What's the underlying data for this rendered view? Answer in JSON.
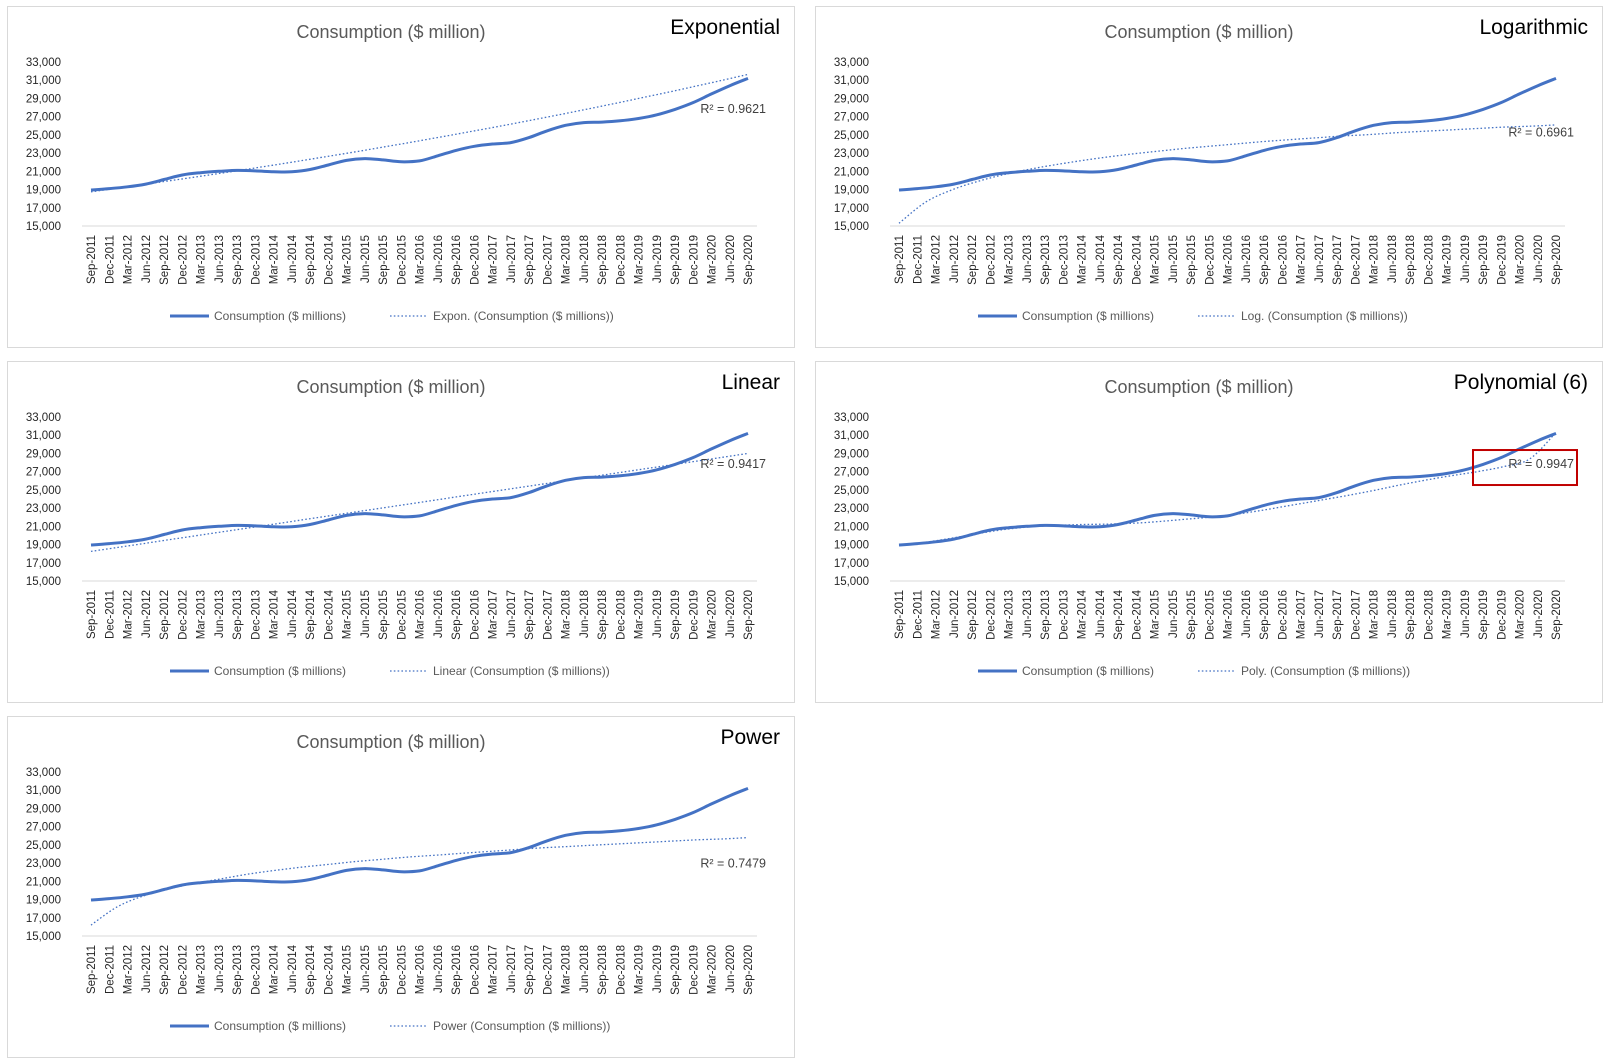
{
  "colors": {
    "series": "#4472C4",
    "highlight": "#C00000",
    "axis": "#d9d9d9",
    "text": "#595959"
  },
  "chart_data": [
    {
      "type": "line",
      "id": "exp",
      "title": "Consumption ($ million)",
      "label": "Exponential",
      "trend_type": "exponential",
      "r2_label": "R² = 0.9621",
      "r2_position": "right-middle",
      "legend": {
        "series": "Consumption ($ millions)",
        "trend": "Expon. (Consumption ($ millions))"
      },
      "trend_values": [
        18750,
        19150,
        19560,
        19970,
        20390,
        20820,
        21260,
        21710,
        22170,
        22640,
        23110,
        23600,
        24100,
        24610,
        25130,
        25660,
        26200,
        26760,
        27320,
        27900,
        28490,
        29100,
        29710,
        30340,
        30980,
        31640
      ],
      "highlight": false
    },
    {
      "type": "line",
      "id": "log",
      "title": "Consumption ($ million)",
      "label": "Logarithmic",
      "trend_type": "logarithmic",
      "r2_label": "R² = 0.6961",
      "r2_position": "right-middle",
      "legend": {
        "series": "Consumption ($ millions)",
        "trend": "Log. (Consumption ($ millions))"
      },
      "trend_values": [
        15300,
        17600,
        18950,
        19900,
        20650,
        21250,
        21750,
        22200,
        22600,
        22950,
        23250,
        23550,
        23800,
        24050,
        24300,
        24500,
        24700,
        24900,
        25050,
        25250,
        25400,
        25550,
        25700,
        25850,
        25950,
        26100
      ],
      "highlight": false
    },
    {
      "type": "line",
      "id": "lin",
      "title": "Consumption ($ million)",
      "label": "Linear",
      "trend_type": "linear",
      "r2_label": "R² = 0.9417",
      "r2_position": "right-middle",
      "legend": {
        "series": "Consumption ($ millions)",
        "trend": "Linear (Consumption ($ millions))"
      },
      "trend_values": [
        18250,
        18680,
        19110,
        19540,
        19970,
        20400,
        20830,
        21260,
        21690,
        22120,
        22550,
        22980,
        23410,
        23840,
        24270,
        24700,
        25130,
        25560,
        25990,
        26420,
        26850,
        27280,
        27710,
        28140,
        28570,
        29000
      ],
      "highlight": false
    },
    {
      "type": "line",
      "id": "poly",
      "title": "Consumption ($ million)",
      "label": "Polynomial (6)",
      "trend_type": "polynomial",
      "r2_label": "R² = 0.9947",
      "r2_position": "right-middle",
      "legend": {
        "series": "Consumption ($ millions)",
        "trend": "Poly. (Consumption ($ millions))"
      },
      "trend_values": [
        18900,
        19250,
        19700,
        20200,
        20650,
        20950,
        21100,
        21200,
        21250,
        21350,
        21550,
        21800,
        22050,
        22400,
        22850,
        23350,
        23850,
        24350,
        24900,
        25500,
        26050,
        26550,
        27000,
        27550,
        28400,
        31300
      ],
      "highlight": true
    },
    {
      "type": "line",
      "id": "pow",
      "title": "Consumption ($ million)",
      "label": "Power",
      "trend_type": "power",
      "r2_label": "R² = 0.7479",
      "r2_position": "right-middle",
      "legend": {
        "series": "Consumption ($ millions)",
        "trend": "Power (Consumption ($ millions))"
      },
      "trend_values": [
        16200,
        18200,
        19400,
        20200,
        20800,
        21300,
        21800,
        22200,
        22550,
        22850,
        23150,
        23400,
        23650,
        23850,
        24050,
        24250,
        24450,
        24650,
        24800,
        24950,
        25100,
        25250,
        25400,
        25550,
        25650,
        25800
      ],
      "highlight": false
    }
  ],
  "shared": {
    "categories": [
      "Sep-2011",
      "Dec-2011",
      "Mar-2012",
      "Jun-2012",
      "Sep-2012",
      "Dec-2012",
      "Mar-2013",
      "Jun-2013",
      "Sep-2013",
      "Dec-2013",
      "Mar-2014",
      "Jun-2014",
      "Sep-2014",
      "Dec-2014",
      "Mar-2015",
      "Jun-2015",
      "Sep-2015",
      "Dec-2015",
      "Mar-2016",
      "Jun-2016",
      "Sep-2016",
      "Dec-2016",
      "Mar-2017",
      "Jun-2017",
      "Sep-2017",
      "Dec-2017",
      "Mar-2018",
      "Jun-2018",
      "Sep-2018",
      "Dec-2018",
      "Mar-2019",
      "Jun-2019",
      "Sep-2019",
      "Dec-2019",
      "Mar-2020",
      "Jun-2020",
      "Sep-2020"
    ],
    "series_values": [
      18950,
      19100,
      19300,
      19600,
      20100,
      20600,
      20850,
      21000,
      21100,
      21050,
      20950,
      20950,
      21200,
      21700,
      22200,
      22400,
      22250,
      22050,
      22150,
      22700,
      23300,
      23750,
      24000,
      24150,
      24700,
      25450,
      26050,
      26350,
      26400,
      26550,
      26800,
      27200,
      27800,
      28550,
      29500,
      30400,
      31200
    ],
    "ylim": [
      15000,
      33000
    ],
    "yticks": [
      "15,000",
      "17,000",
      "19,000",
      "21,000",
      "23,000",
      "25,000",
      "27,000",
      "29,000",
      "31,000",
      "33,000"
    ],
    "ytick_values": [
      15000,
      17000,
      19000,
      21000,
      23000,
      25000,
      27000,
      29000,
      31000,
      33000
    ]
  }
}
